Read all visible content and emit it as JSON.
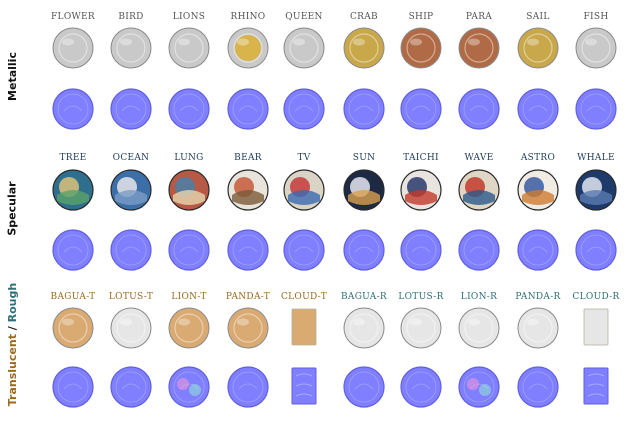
{
  "sections": [
    {
      "name": "Metallic",
      "parts": [
        {
          "text": "Metallic",
          "color": "#111111"
        }
      ],
      "columns": [
        "Flower",
        "Bird",
        "Lions",
        "Rhino",
        "Queen",
        "Crab",
        "Ship",
        "Para",
        "Sail",
        "Fish"
      ],
      "label_color": "#555555",
      "photo_row": [
        "silver",
        "silver",
        "bimetal-gold",
        "bimetal-silver",
        "silver",
        "gold",
        "copper",
        "copper",
        "gold",
        "silver"
      ]
    },
    {
      "name": "Specular",
      "parts": [
        {
          "text": "Specular",
          "color": "#111111"
        }
      ],
      "columns": [
        "Tree",
        "Ocean",
        "Lung",
        "Bear",
        "Tv",
        "Sun",
        "Taichi",
        "Wave",
        "Astro",
        "Whale"
      ],
      "label_color": "#1f3d5a",
      "photo_row": [
        "colorful",
        "colorful",
        "colorful",
        "colorful",
        "colorful",
        "colorful",
        "colorful",
        "colorful",
        "colorful",
        "colorful"
      ]
    },
    {
      "name": "Translucent / Rough",
      "parts": [
        {
          "text": "Translucent",
          "color": "#9a6a1e"
        },
        {
          "text": " / ",
          "color": "#111111"
        },
        {
          "text": "Rough",
          "color": "#2f6f78"
        }
      ],
      "columns": [
        "Bagua-t",
        "Lotus-t",
        "Lion-t",
        "Panda-t",
        "Cloud-t",
        "Bagua-r",
        "Lotus-r",
        "Lion-r",
        "Panda-r",
        "Cloud-r"
      ],
      "label_colors": [
        "#9a6a1e",
        "#9a6a1e",
        "#9a6a1e",
        "#9a6a1e",
        "#9a6a1e",
        "#2f6f78",
        "#2f6f78",
        "#2f6f78",
        "#2f6f78",
        "#2f6f78"
      ],
      "photo_row": [
        "amber",
        "white",
        "amber",
        "amber",
        "amber-rect",
        "white",
        "white",
        "white",
        "white",
        "white-rect"
      ]
    }
  ],
  "colors": {
    "normal_map": "#7f7fff",
    "normal_edge": "#5f5fe0",
    "silver": "#c9c9c9",
    "gold": "#c8a84a",
    "copper": "#b06a45",
    "amber": "#d9aa72",
    "white": "#e6e6e6"
  }
}
